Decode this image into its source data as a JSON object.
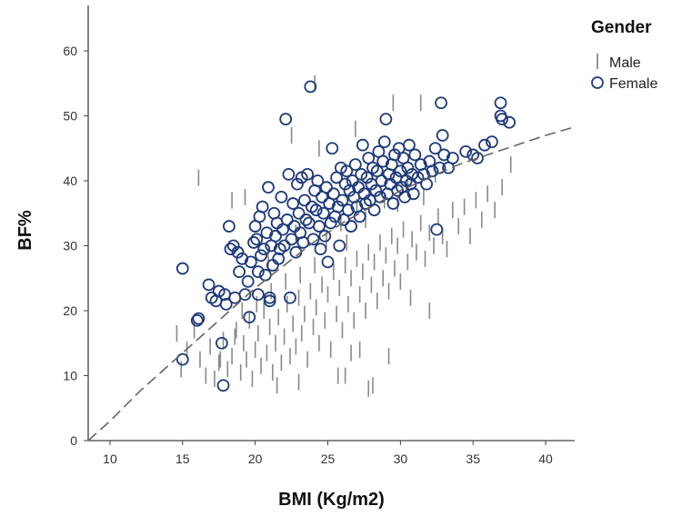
{
  "chart_data": {
    "type": "scatter",
    "xlabel": "BMI (Kg/m2)",
    "ylabel": "BF%",
    "xlim": [
      8.5,
      42
    ],
    "ylim": [
      0,
      67
    ],
    "xticks": [
      10,
      15,
      20,
      25,
      30,
      35,
      40
    ],
    "yticks": [
      0,
      10,
      20,
      30,
      40,
      50,
      60
    ],
    "grid": false,
    "legend": {
      "title": "Gender",
      "position": "top-right"
    },
    "colors": {
      "male": "#8a8a8a",
      "female": "#1f3a7a",
      "fit_line": "#666666",
      "axis": "#444444"
    },
    "series": [
      {
        "name": "Male",
        "marker": "vertical-line",
        "points": [
          [
            14.6,
            16.5
          ],
          [
            14.9,
            11.0
          ],
          [
            15.3,
            14.0
          ],
          [
            15.8,
            17.0
          ],
          [
            16.2,
            12.5
          ],
          [
            16.6,
            10.0
          ],
          [
            16.9,
            14.5
          ],
          [
            17.2,
            9.5
          ],
          [
            17.5,
            12.0
          ],
          [
            17.8,
            15.5
          ],
          [
            18.1,
            11.0
          ],
          [
            18.4,
            13.0
          ],
          [
            18.7,
            17.0
          ],
          [
            19.0,
            10.5
          ],
          [
            19.2,
            15.0
          ],
          [
            19.4,
            12.5
          ],
          [
            19.6,
            18.5
          ],
          [
            19.8,
            9.5
          ],
          [
            20.0,
            14.0
          ],
          [
            20.2,
            16.5
          ],
          [
            20.4,
            11.5
          ],
          [
            20.6,
            20.0
          ],
          [
            20.8,
            13.5
          ],
          [
            21.0,
            17.5
          ],
          [
            21.2,
            10.5
          ],
          [
            21.4,
            15.0
          ],
          [
            21.6,
            19.0
          ],
          [
            21.8,
            12.0
          ],
          [
            22.0,
            16.0
          ],
          [
            22.2,
            21.0
          ],
          [
            22.4,
            13.0
          ],
          [
            22.6,
            18.0
          ],
          [
            22.8,
            14.5
          ],
          [
            23.0,
            22.0
          ],
          [
            23.2,
            16.5
          ],
          [
            23.4,
            19.5
          ],
          [
            23.6,
            12.5
          ],
          [
            23.8,
            23.0
          ],
          [
            24.0,
            17.5
          ],
          [
            24.2,
            20.5
          ],
          [
            24.4,
            15.0
          ],
          [
            24.6,
            24.0
          ],
          [
            24.8,
            18.5
          ],
          [
            25.0,
            22.5
          ],
          [
            25.2,
            14.0
          ],
          [
            25.4,
            26.0
          ],
          [
            25.6,
            19.5
          ],
          [
            25.8,
            23.5
          ],
          [
            26.0,
            17.0
          ],
          [
            26.2,
            27.0
          ],
          [
            26.4,
            21.0
          ],
          [
            26.6,
            25.0
          ],
          [
            26.8,
            18.5
          ],
          [
            27.0,
            28.0
          ],
          [
            27.2,
            22.5
          ],
          [
            27.4,
            26.0
          ],
          [
            27.6,
            20.0
          ],
          [
            27.8,
            29.0
          ],
          [
            28.0,
            24.0
          ],
          [
            28.2,
            27.5
          ],
          [
            28.4,
            21.5
          ],
          [
            28.6,
            30.5
          ],
          [
            28.8,
            25.0
          ],
          [
            29.0,
            28.5
          ],
          [
            29.2,
            23.0
          ],
          [
            29.4,
            31.5
          ],
          [
            29.6,
            26.5
          ],
          [
            29.8,
            30.0
          ],
          [
            30.0,
            24.5
          ],
          [
            30.2,
            32.5
          ],
          [
            30.5,
            27.5
          ],
          [
            30.8,
            31.0
          ],
          [
            31.1,
            29.0
          ],
          [
            31.4,
            33.5
          ],
          [
            31.7,
            28.0
          ],
          [
            32.0,
            32.0
          ],
          [
            32.3,
            30.0
          ],
          [
            32.6,
            34.5
          ],
          [
            32.9,
            31.5
          ],
          [
            33.2,
            29.5
          ],
          [
            33.6,
            35.5
          ],
          [
            34.0,
            33.0
          ],
          [
            34.4,
            36.0
          ],
          [
            34.8,
            31.5
          ],
          [
            35.2,
            37.0
          ],
          [
            35.6,
            34.0
          ],
          [
            36.0,
            38.0
          ],
          [
            36.5,
            35.5
          ],
          [
            37.0,
            39.0
          ],
          [
            37.6,
            42.5
          ],
          [
            16.1,
            40.5
          ],
          [
            18.4,
            37.0
          ],
          [
            19.3,
            37.5
          ],
          [
            24.1,
            55.0
          ],
          [
            24.4,
            45.0
          ],
          [
            22.5,
            47.0
          ],
          [
            26.9,
            48.0
          ],
          [
            29.5,
            52.0
          ],
          [
            31.4,
            52.0
          ],
          [
            21.5,
            8.5
          ],
          [
            23.0,
            9.0
          ],
          [
            27.8,
            8.0
          ],
          [
            28.1,
            8.5
          ],
          [
            26.2,
            10.0
          ],
          [
            25.7,
            10.0
          ],
          [
            27.2,
            14.0
          ],
          [
            29.2,
            13.0
          ],
          [
            30.7,
            22.0
          ],
          [
            32.0,
            20.0
          ],
          [
            26.6,
            13.5
          ],
          [
            20.9,
            28.0
          ],
          [
            22.8,
            32.0
          ],
          [
            24.9,
            31.0
          ],
          [
            25.9,
            33.5
          ],
          [
            26.3,
            30.5
          ],
          [
            27.0,
            36.0
          ],
          [
            27.6,
            34.0
          ],
          [
            28.9,
            37.0
          ],
          [
            29.8,
            36.5
          ],
          [
            30.5,
            39.0
          ],
          [
            31.6,
            37.5
          ],
          [
            32.4,
            41.0
          ],
          [
            17.6,
            12.5
          ],
          [
            18.6,
            16.0
          ],
          [
            19.1,
            20.0
          ],
          [
            20.1,
            21.0
          ],
          [
            21.1,
            23.0
          ],
          [
            22.1,
            24.5
          ],
          [
            23.1,
            25.5
          ],
          [
            24.1,
            27.0
          ]
        ]
      },
      {
        "name": "Female",
        "marker": "hollow-circle",
        "points": [
          [
            15.0,
            26.5
          ],
          [
            15.0,
            12.5
          ],
          [
            16.0,
            18.5
          ],
          [
            16.1,
            18.8
          ],
          [
            16.8,
            24.0
          ],
          [
            17.0,
            22.0
          ],
          [
            17.3,
            21.5
          ],
          [
            17.5,
            23.0
          ],
          [
            17.7,
            15.0
          ],
          [
            17.8,
            8.5
          ],
          [
            17.9,
            22.5
          ],
          [
            18.0,
            21.0
          ],
          [
            18.2,
            33.0
          ],
          [
            18.3,
            29.5
          ],
          [
            18.5,
            30.0
          ],
          [
            18.6,
            22.0
          ],
          [
            18.8,
            29.0
          ],
          [
            18.9,
            26.0
          ],
          [
            19.1,
            28.0
          ],
          [
            19.3,
            22.5
          ],
          [
            19.5,
            24.5
          ],
          [
            19.6,
            19.0
          ],
          [
            19.7,
            27.5
          ],
          [
            19.9,
            30.5
          ],
          [
            20.0,
            33.0
          ],
          [
            20.1,
            31.0
          ],
          [
            20.2,
            26.0
          ],
          [
            20.3,
            34.5
          ],
          [
            20.4,
            28.5
          ],
          [
            20.5,
            36.0
          ],
          [
            20.6,
            29.5
          ],
          [
            20.7,
            25.5
          ],
          [
            20.8,
            32.0
          ],
          [
            20.9,
            39.0
          ],
          [
            21.0,
            22.0
          ],
          [
            21.0,
            21.5
          ],
          [
            21.1,
            30.0
          ],
          [
            21.2,
            27.0
          ],
          [
            21.3,
            35.0
          ],
          [
            21.4,
            31.5
          ],
          [
            21.5,
            33.5
          ],
          [
            21.6,
            28.0
          ],
          [
            21.7,
            29.5
          ],
          [
            21.8,
            37.5
          ],
          [
            21.9,
            32.5
          ],
          [
            22.0,
            30.0
          ],
          [
            22.1,
            49.5
          ],
          [
            22.2,
            34.0
          ],
          [
            22.3,
            41.0
          ],
          [
            22.4,
            22.0
          ],
          [
            22.5,
            31.0
          ],
          [
            22.6,
            36.5
          ],
          [
            22.7,
            33.0
          ],
          [
            22.8,
            29.0
          ],
          [
            22.9,
            39.5
          ],
          [
            23.0,
            35.0
          ],
          [
            23.1,
            32.0
          ],
          [
            23.2,
            40.5
          ],
          [
            23.3,
            30.5
          ],
          [
            23.4,
            37.0
          ],
          [
            23.5,
            34.0
          ],
          [
            23.6,
            41.0
          ],
          [
            23.7,
            33.5
          ],
          [
            23.8,
            54.5
          ],
          [
            23.9,
            36.0
          ],
          [
            24.0,
            31.0
          ],
          [
            24.1,
            38.5
          ],
          [
            24.2,
            35.5
          ],
          [
            24.3,
            40.0
          ],
          [
            24.4,
            33.0
          ],
          [
            24.5,
            29.5
          ],
          [
            24.6,
            37.5
          ],
          [
            24.7,
            35.0
          ],
          [
            24.8,
            31.5
          ],
          [
            24.9,
            39.0
          ],
          [
            25.0,
            27.5
          ],
          [
            25.1,
            36.5
          ],
          [
            25.2,
            33.5
          ],
          [
            25.3,
            45.0
          ],
          [
            25.4,
            38.0
          ],
          [
            25.5,
            34.5
          ],
          [
            25.6,
            40.5
          ],
          [
            25.7,
            36.0
          ],
          [
            25.8,
            30.0
          ],
          [
            25.9,
            42.0
          ],
          [
            26.0,
            37.0
          ],
          [
            26.1,
            34.0
          ],
          [
            26.2,
            39.5
          ],
          [
            26.3,
            41.5
          ],
          [
            26.4,
            35.5
          ],
          [
            26.5,
            38.5
          ],
          [
            26.6,
            33.0
          ],
          [
            26.7,
            40.0
          ],
          [
            26.8,
            37.5
          ],
          [
            26.9,
            42.5
          ],
          [
            27.0,
            36.0
          ],
          [
            27.1,
            39.0
          ],
          [
            27.2,
            34.5
          ],
          [
            27.3,
            41.0
          ],
          [
            27.4,
            45.5
          ],
          [
            27.5,
            38.0
          ],
          [
            27.6,
            36.5
          ],
          [
            27.7,
            40.5
          ],
          [
            27.8,
            43.5
          ],
          [
            27.9,
            37.0
          ],
          [
            28.0,
            39.5
          ],
          [
            28.1,
            42.0
          ],
          [
            28.2,
            35.5
          ],
          [
            28.3,
            38.5
          ],
          [
            28.4,
            41.5
          ],
          [
            28.5,
            44.5
          ],
          [
            28.6,
            37.5
          ],
          [
            28.7,
            40.0
          ],
          [
            28.8,
            43.0
          ],
          [
            28.9,
            46.0
          ],
          [
            29.0,
            49.5
          ],
          [
            29.1,
            38.0
          ],
          [
            29.2,
            41.0
          ],
          [
            29.3,
            39.5
          ],
          [
            29.4,
            42.5
          ],
          [
            29.5,
            36.5
          ],
          [
            29.6,
            44.0
          ],
          [
            29.7,
            40.5
          ],
          [
            29.8,
            38.5
          ],
          [
            29.9,
            45.0
          ],
          [
            30.0,
            41.5
          ],
          [
            30.1,
            39.0
          ],
          [
            30.2,
            43.5
          ],
          [
            30.3,
            37.5
          ],
          [
            30.4,
            40.0
          ],
          [
            30.5,
            42.0
          ],
          [
            30.6,
            45.5
          ],
          [
            30.7,
            39.5
          ],
          [
            30.8,
            41.0
          ],
          [
            30.9,
            38.0
          ],
          [
            31.0,
            44.0
          ],
          [
            31.2,
            40.5
          ],
          [
            31.4,
            42.5
          ],
          [
            31.6,
            41.0
          ],
          [
            31.8,
            39.5
          ],
          [
            32.0,
            43.0
          ],
          [
            32.2,
            41.5
          ],
          [
            32.4,
            45.0
          ],
          [
            32.5,
            32.5
          ],
          [
            32.7,
            42.0
          ],
          [
            32.9,
            47.0
          ],
          [
            32.8,
            52.0
          ],
          [
            33.0,
            44.0
          ],
          [
            33.3,
            42.0
          ],
          [
            33.6,
            43.5
          ],
          [
            34.5,
            44.5
          ],
          [
            35.0,
            44.0
          ],
          [
            35.3,
            43.5
          ],
          [
            35.8,
            45.5
          ],
          [
            36.3,
            46.0
          ],
          [
            36.9,
            52.0
          ],
          [
            36.9,
            50.0
          ],
          [
            37.0,
            49.5
          ],
          [
            37.5,
            49.0
          ],
          [
            20.2,
            22.5
          ]
        ]
      }
    ],
    "fit_curve": {
      "style": "dashed",
      "x": [
        8.5,
        10,
        12,
        14,
        16,
        18,
        20,
        22,
        24,
        26,
        28,
        30,
        32,
        34,
        36,
        38,
        40,
        42
      ],
      "y": [
        0.0,
        3.0,
        7.5,
        11.5,
        15.5,
        19.5,
        23.5,
        27.0,
        30.5,
        33.5,
        36.0,
        38.5,
        40.5,
        42.5,
        44.0,
        45.5,
        47.0,
        48.3
      ]
    }
  }
}
